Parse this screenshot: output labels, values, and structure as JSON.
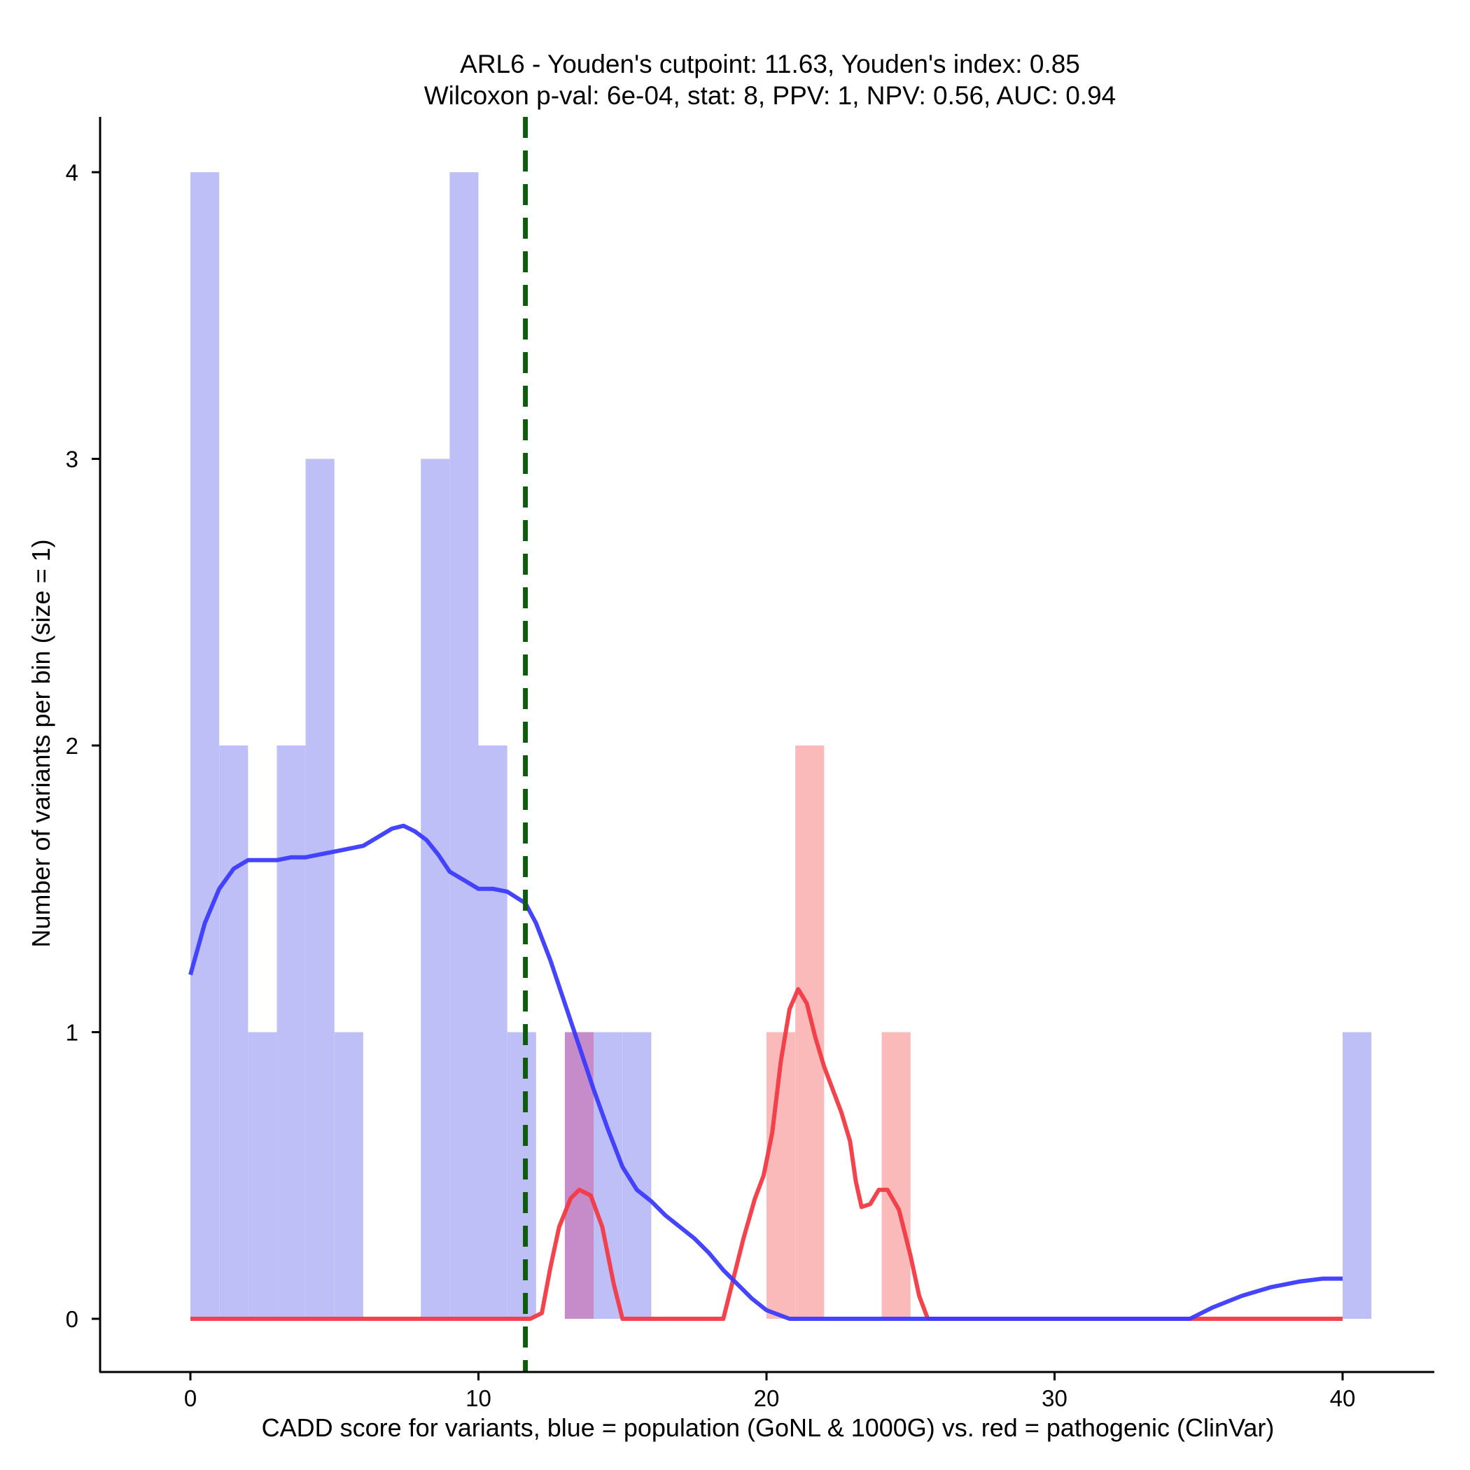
{
  "chart_data": {
    "type": "histogram",
    "title": [
      "ARL6 - Youden's cutpoint: 11.63, Youden's index: 0.85",
      "Wilcoxon p-val: 6e-04, stat: 8, PPV: 1, NPV: 0.56, AUC: 0.94"
    ],
    "xlabel": "CADD score for variants, blue = population (GoNL & 1000G) vs. red = pathogenic (ClinVar)",
    "ylabel": "Number of variants per bin (size = 1)",
    "xlim": [
      -3.2,
      43.1
    ],
    "ylim": [
      -0.2,
      4.2
    ],
    "xticks": [
      0,
      10,
      20,
      30,
      40
    ],
    "yticks": [
      0,
      1,
      2,
      3,
      4
    ],
    "cutpoint": 11.63,
    "bin_size": 1,
    "series": [
      {
        "name": "population (GoNL & 1000G)",
        "bar_color": "#bfbff8",
        "line_color": "#3b3bff",
        "bins": [
          {
            "x0": 0,
            "count": 4
          },
          {
            "x0": 1,
            "count": 2
          },
          {
            "x0": 2,
            "count": 1
          },
          {
            "x0": 3,
            "count": 2
          },
          {
            "x0": 4,
            "count": 3
          },
          {
            "x0": 5,
            "count": 1
          },
          {
            "x0": 8,
            "count": 3
          },
          {
            "x0": 9,
            "count": 4
          },
          {
            "x0": 10,
            "count": 2
          },
          {
            "x0": 11,
            "count": 1
          },
          {
            "x0": 13,
            "count": 1
          },
          {
            "x0": 14,
            "count": 1
          },
          {
            "x0": 15,
            "count": 1
          },
          {
            "x0": 40,
            "count": 1
          }
        ],
        "density": [
          [
            0,
            1.2
          ],
          [
            0.5,
            1.38
          ],
          [
            1,
            1.5
          ],
          [
            1.5,
            1.57
          ],
          [
            2,
            1.6
          ],
          [
            2.5,
            1.6
          ],
          [
            3,
            1.6
          ],
          [
            3.5,
            1.61
          ],
          [
            4,
            1.61
          ],
          [
            4.5,
            1.62
          ],
          [
            5,
            1.63
          ],
          [
            5.5,
            1.64
          ],
          [
            6,
            1.65
          ],
          [
            6.5,
            1.68
          ],
          [
            7,
            1.71
          ],
          [
            7.4,
            1.72
          ],
          [
            7.8,
            1.7
          ],
          [
            8.2,
            1.67
          ],
          [
            8.6,
            1.62
          ],
          [
            9,
            1.56
          ],
          [
            9.5,
            1.53
          ],
          [
            10,
            1.5
          ],
          [
            10.5,
            1.5
          ],
          [
            11,
            1.49
          ],
          [
            11.63,
            1.45
          ],
          [
            12,
            1.38
          ],
          [
            12.5,
            1.25
          ],
          [
            13,
            1.1
          ],
          [
            13.5,
            0.95
          ],
          [
            14,
            0.8
          ],
          [
            14.5,
            0.66
          ],
          [
            15,
            0.53
          ],
          [
            15.5,
            0.45
          ],
          [
            16,
            0.41
          ],
          [
            16.5,
            0.36
          ],
          [
            17,
            0.32
          ],
          [
            17.5,
            0.28
          ],
          [
            18,
            0.23
          ],
          [
            18.5,
            0.17
          ],
          [
            19,
            0.12
          ],
          [
            19.5,
            0.07
          ],
          [
            20,
            0.03
          ],
          [
            20.8,
            0.0
          ],
          [
            22,
            0.0
          ],
          [
            26,
            0.0
          ],
          [
            30,
            0.0
          ],
          [
            34.7,
            0.0
          ],
          [
            35.5,
            0.04
          ],
          [
            36.5,
            0.08
          ],
          [
            37.5,
            0.11
          ],
          [
            38.5,
            0.13
          ],
          [
            39.3,
            0.14
          ],
          [
            40,
            0.14
          ]
        ]
      },
      {
        "name": "pathogenic (ClinVar)",
        "bar_color": "#fbbaba",
        "line_color": "#f23a45",
        "bins": [
          {
            "x0": 13,
            "count": 1
          },
          {
            "x0": 20,
            "count": 1
          },
          {
            "x0": 21,
            "count": 2
          },
          {
            "x0": 24,
            "count": 1
          }
        ],
        "density": [
          [
            0,
            0.0
          ],
          [
            11.8,
            0.0
          ],
          [
            12.2,
            0.02
          ],
          [
            12.5,
            0.18
          ],
          [
            12.8,
            0.32
          ],
          [
            13.2,
            0.42
          ],
          [
            13.5,
            0.45
          ],
          [
            13.9,
            0.43
          ],
          [
            14.3,
            0.32
          ],
          [
            14.7,
            0.12
          ],
          [
            15,
            0.0
          ],
          [
            18.5,
            0.0
          ],
          [
            18.8,
            0.12
          ],
          [
            19.2,
            0.28
          ],
          [
            19.6,
            0.42
          ],
          [
            19.9,
            0.5
          ],
          [
            20.2,
            0.65
          ],
          [
            20.5,
            0.9
          ],
          [
            20.8,
            1.08
          ],
          [
            21.1,
            1.15
          ],
          [
            21.4,
            1.1
          ],
          [
            21.7,
            0.98
          ],
          [
            22,
            0.88
          ],
          [
            22.3,
            0.8
          ],
          [
            22.6,
            0.72
          ],
          [
            22.9,
            0.62
          ],
          [
            23.1,
            0.48
          ],
          [
            23.3,
            0.39
          ],
          [
            23.6,
            0.4
          ],
          [
            23.9,
            0.45
          ],
          [
            24.2,
            0.45
          ],
          [
            24.6,
            0.38
          ],
          [
            25,
            0.22
          ],
          [
            25.3,
            0.08
          ],
          [
            25.6,
            0.0
          ],
          [
            30,
            0.0
          ],
          [
            35,
            0.0
          ],
          [
            40,
            0.0
          ]
        ]
      }
    ],
    "cutpoint_color": "#0f5a0f",
    "overlap_color": "#c68bc9"
  }
}
